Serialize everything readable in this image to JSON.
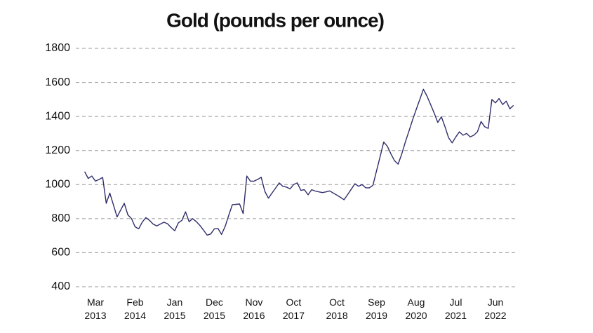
{
  "chart_data": {
    "type": "line",
    "title": "Gold (pounds per ounce)",
    "categories": [
      null,
      null,
      null,
      "Mar 2013",
      null,
      null,
      null,
      null,
      null,
      null,
      null,
      null,
      null,
      null,
      "Feb 2014",
      null,
      null,
      null,
      null,
      null,
      null,
      null,
      null,
      null,
      null,
      "Jan 2015",
      null,
      null,
      null,
      null,
      null,
      null,
      null,
      null,
      null,
      null,
      "Dec 2015",
      null,
      null,
      null,
      null,
      null,
      null,
      null,
      null,
      null,
      null,
      "Nov 2016",
      null,
      null,
      null,
      null,
      null,
      null,
      null,
      null,
      null,
      null,
      "Oct 2017",
      null,
      null,
      null,
      null,
      null,
      null,
      null,
      null,
      null,
      null,
      null,
      "Oct 2018",
      null,
      null,
      null,
      null,
      null,
      null,
      null,
      null,
      null,
      null,
      "Sep 2019",
      null,
      null,
      null,
      null,
      null,
      null,
      null,
      null,
      null,
      null,
      "Aug 2020",
      null,
      null,
      null,
      null,
      null,
      null,
      null,
      null,
      null,
      null,
      "Jul 2021",
      null,
      null,
      null,
      null,
      null,
      null,
      null,
      null,
      null,
      null,
      "Jun 2022",
      null,
      null,
      null,
      null,
      null
    ],
    "values": [
      1076,
      1036,
      1050,
      1020,
      1030,
      1042,
      890,
      950,
      880,
      810,
      850,
      890,
      822,
      800,
      752,
      740,
      780,
      806,
      790,
      768,
      757,
      768,
      779,
      770,
      748,
      729,
      775,
      790,
      840,
      782,
      800,
      782,
      760,
      732,
      703,
      710,
      740,
      742,
      707,
      755,
      820,
      882,
      884,
      886,
      830,
      1050,
      1020,
      1020,
      1030,
      1043,
      960,
      920,
      950,
      980,
      1010,
      990,
      985,
      975,
      1000,
      1010,
      966,
      970,
      940,
      970,
      962,
      957,
      953,
      957,
      963,
      950,
      938,
      925,
      911,
      942,
      973,
      1005,
      990,
      1000,
      981,
      981,
      996,
      1080,
      1165,
      1250,
      1225,
      1180,
      1140,
      1120,
      1180,
      1250,
      1315,
      1380,
      1440,
      1500,
      1560,
      1520,
      1470,
      1420,
      1365,
      1398,
      1340,
      1275,
      1245,
      1280,
      1310,
      1290,
      1300,
      1280,
      1290,
      1310,
      1370,
      1340,
      1330,
      1500,
      1480,
      1505,
      1470,
      1490,
      1445,
      1465
    ],
    "color": "#2e2d6b",
    "ylim": [
      400,
      1800
    ],
    "yticks": [
      400,
      600,
      800,
      1000,
      1200,
      1400,
      1600,
      1800
    ],
    "grid": true
  }
}
